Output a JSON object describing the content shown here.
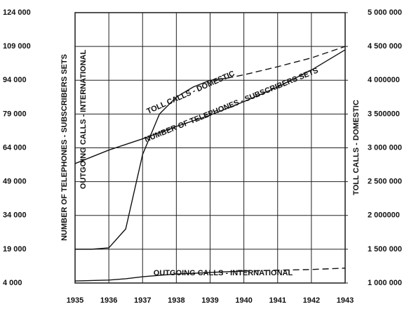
{
  "chart_data": {
    "type": "line",
    "ylabel": [
      "NUMBER OF TELEPHONES - SUBSCRIBERS SETS",
      "OUTGOING CALLS - INTERNATIONAL"
    ],
    "y2label": "TOLL CALLS - DOMESTIC",
    "x": [
      1935,
      1935.5,
      1936,
      1936.5,
      1937,
      1937.5,
      1938,
      1938.5,
      1939,
      1939.5,
      1940,
      1941,
      1942,
      1943
    ],
    "xlim": [
      1935,
      1943
    ],
    "xticks": [
      1935,
      1936,
      1937,
      1938,
      1939,
      1940,
      1941,
      1942,
      1943
    ],
    "ylim": [
      4000,
      124000
    ],
    "yticks": [
      {
        "value": 4000,
        "label": "4 000"
      },
      {
        "value": 19000,
        "label": "19 000"
      },
      {
        "value": 34000,
        "label": "34 000"
      },
      {
        "value": 49000,
        "label": "49 000"
      },
      {
        "value": 64000,
        "label": "64 000"
      },
      {
        "value": 79000,
        "label": "79 000"
      },
      {
        "value": 94000,
        "label": "94 000"
      },
      {
        "value": 109000,
        "label": "109 000"
      },
      {
        "value": 124000,
        "label": "124 000"
      }
    ],
    "y2lim": [
      1000000,
      5000000
    ],
    "y2ticks": [
      {
        "value": 1000000,
        "label": "1 000 000"
      },
      {
        "value": 1500000,
        "label": "1 500 000"
      },
      {
        "value": 2000000,
        "label": "2 000000"
      },
      {
        "value": 2500000,
        "label": "2 500 000"
      },
      {
        "value": 3000000,
        "label": "3 000 000"
      },
      {
        "value": 3500000,
        "label": "3 500000"
      },
      {
        "value": 4000000,
        "label": "4 000000"
      },
      {
        "value": 4500000,
        "label": "4 500 000"
      },
      {
        "value": 5000000,
        "label": "5 000 000"
      }
    ],
    "grid": true,
    "series": [
      {
        "name": "NUMBER OF TELEPHONES - SUBSCRIBERS SETS",
        "color": "#111111",
        "values": [
          57000,
          60000,
          63000,
          65500,
          68000,
          70800,
          73500,
          76000,
          78500,
          81500,
          84500,
          91000,
          98500,
          107500
        ]
      },
      {
        "name": "TOLL CALLS - DOMESTIC",
        "color": "#111111",
        "axis": "y2",
        "dashed_from": 1939.5,
        "values": [
          1500000,
          1500000,
          1520000,
          1800000,
          2900000,
          3500000,
          3750000,
          3900000,
          4000000,
          4030000,
          4080000,
          4200000,
          4330000,
          4500000
        ]
      },
      {
        "name": "OUTGOING CALLS - INTERNATIONAL",
        "color": "#111111",
        "dashed_from": 1940,
        "values": [
          4900,
          5100,
          5300,
          5900,
          6800,
          7400,
          8000,
          8300,
          8700,
          9000,
          9300,
          9700,
          10000,
          10600
        ]
      }
    ]
  }
}
